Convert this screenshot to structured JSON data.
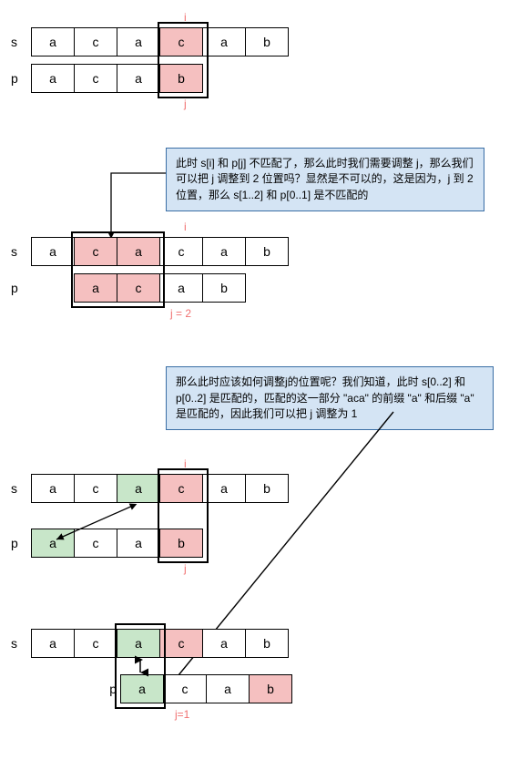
{
  "colors": {
    "red_fill": "#f5c0c0",
    "green_fill": "#c8e6c9",
    "white": "#ffffff",
    "note_bg_blue": "#d4e4f4",
    "note_border": "#3a6ea5",
    "capt_color": "#f07070"
  },
  "cell": {
    "w": 48,
    "h": 32,
    "label_w": 22
  },
  "stage1": {
    "s_label": "s",
    "p_label": "p",
    "s": [
      {
        "v": "a"
      },
      {
        "v": "c"
      },
      {
        "v": "a"
      },
      {
        "v": "c",
        "fill": "red"
      },
      {
        "v": "a"
      },
      {
        "v": "b"
      }
    ],
    "p": [
      {
        "v": "a"
      },
      {
        "v": "c"
      },
      {
        "v": "a"
      },
      {
        "v": "b",
        "fill": "red"
      }
    ],
    "p_shift_cells": 0,
    "i_label": "i",
    "j_label": "j",
    "sel_col": 3
  },
  "note1": "此时 s[i] 和 p[j] 不匹配了，那么此时我们需要调整 j，那么我们可以把 j 调整到 2 位置吗？显然是不可以的，这是因为，j 到 2 位置，那么 s[1..2] 和 p[0..1] 是不匹配的",
  "stage2": {
    "s_label": "s",
    "p_label": "p",
    "s": [
      {
        "v": "a"
      },
      {
        "v": "c",
        "fill": "red"
      },
      {
        "v": "a",
        "fill": "red"
      },
      {
        "v": "c"
      },
      {
        "v": "a"
      },
      {
        "v": "b"
      }
    ],
    "p": [
      {
        "v": "a",
        "fill": "red"
      },
      {
        "v": "c",
        "fill": "red"
      },
      {
        "v": "a"
      },
      {
        "v": "b"
      }
    ],
    "p_shift_cells": 1,
    "i_label": "i",
    "j_label": "j = 2",
    "sel_start_col": 1,
    "sel_span": 2
  },
  "note2": "那么此时应该如何调整j的位置呢？我们知道，此时 s[0..2] 和 p[0..2] 是匹配的，匹配的这一部分 \"aca\" 的前缀 \"a\" 和后缀 \"a\" 是匹配的，因此我们可以把 j 调整为 1",
  "stage3": {
    "s_label": "s",
    "p_label": "p",
    "s": [
      {
        "v": "a"
      },
      {
        "v": "c"
      },
      {
        "v": "a",
        "fill": "green"
      },
      {
        "v": "c",
        "fill": "red"
      },
      {
        "v": "a"
      },
      {
        "v": "b"
      }
    ],
    "p": [
      {
        "v": "a",
        "fill": "green"
      },
      {
        "v": "c"
      },
      {
        "v": "a"
      },
      {
        "v": "b",
        "fill": "red"
      }
    ],
    "p_shift_cells": 0,
    "i_label": "i",
    "j_label": "j",
    "sel_col": 3
  },
  "stage4": {
    "s_label": "s",
    "p_label": "p",
    "s": [
      {
        "v": "a"
      },
      {
        "v": "c"
      },
      {
        "v": "a",
        "fill": "green"
      },
      {
        "v": "c",
        "fill": "red"
      },
      {
        "v": "a"
      },
      {
        "v": "b"
      }
    ],
    "p": [
      {
        "v": "a",
        "fill": "green"
      },
      {
        "v": "c"
      },
      {
        "v": "a"
      },
      {
        "v": "b",
        "fill": "red"
      }
    ],
    "p_shift_cells": 2,
    "j_label": "j=1",
    "sel_col": 2
  }
}
